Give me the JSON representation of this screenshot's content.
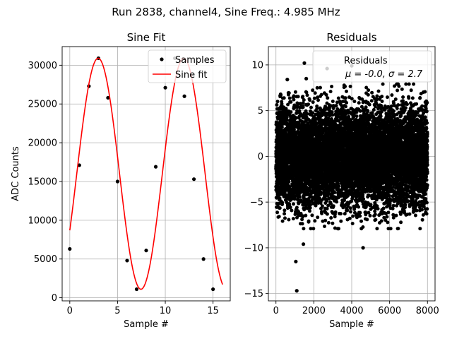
{
  "suptitle": "Run 2838, channel4, Sine Freq.: 4.985 MHz",
  "chart_data": [
    {
      "type": "scatter",
      "title": "Sine Fit",
      "xlabel": "Sample #",
      "ylabel": "ADC Counts",
      "xlim": [
        -0.8,
        16.8
      ],
      "ylim": [
        -400,
        32400
      ],
      "xticks": [
        0,
        5,
        10,
        15
      ],
      "yticks": [
        0,
        5000,
        10000,
        15000,
        20000,
        25000,
        30000
      ],
      "grid": true,
      "legend": {
        "placement": "upper right",
        "entries": [
          "Samples",
          "Sine fit"
        ]
      },
      "series": [
        {
          "name": "Samples",
          "kind": "points",
          "color": "#000000",
          "x": [
            0,
            1,
            2,
            3,
            4,
            5,
            6,
            7,
            8,
            9,
            10,
            11,
            12,
            13,
            14,
            15
          ],
          "y": [
            6300,
            17100,
            27300,
            30900,
            25800,
            15000,
            4800,
            1100,
            6100,
            16900,
            27100,
            30900,
            26000,
            15300,
            5000,
            1100
          ]
        },
        {
          "name": "Sine fit",
          "kind": "line",
          "color": "#ff0000",
          "model": {
            "amplitude": 14900,
            "offset": 16000,
            "frequency_per_sample": 0.1116,
            "phase_sample": 0.73,
            "x_range": [
              0,
              16
            ]
          }
        }
      ]
    },
    {
      "type": "scatter",
      "title": "Residuals",
      "xlabel": "Sample #",
      "ylabel": "",
      "xlim": [
        -400,
        8400
      ],
      "ylim": [
        -15.8,
        12
      ],
      "xticks": [
        0,
        2000,
        4000,
        6000,
        8000
      ],
      "yticks": [
        -15,
        -10,
        -5,
        0,
        5,
        10
      ],
      "grid": true,
      "legend": {
        "placement": "upper right",
        "title": "Residuals",
        "text": "μ = -0.0, σ = 2.7"
      },
      "series": [
        {
          "name": "Residuals",
          "kind": "points",
          "color": "#000000",
          "n_points": 8000,
          "mean": 0.0,
          "std": 2.7,
          "x_range": [
            0,
            8000
          ],
          "outliers": [
            {
              "x": 1100,
              "y": -14.7
            },
            {
              "x": 1050,
              "y": -11.5
            },
            {
              "x": 1450,
              "y": -9.6
            },
            {
              "x": 4600,
              "y": -10.0
            },
            {
              "x": 1500,
              "y": 10.2
            },
            {
              "x": 2700,
              "y": 9.6
            },
            {
              "x": 4000,
              "y": 9.9
            },
            {
              "x": 600,
              "y": 8.4
            },
            {
              "x": 1600,
              "y": 8.5
            }
          ]
        }
      ]
    }
  ]
}
